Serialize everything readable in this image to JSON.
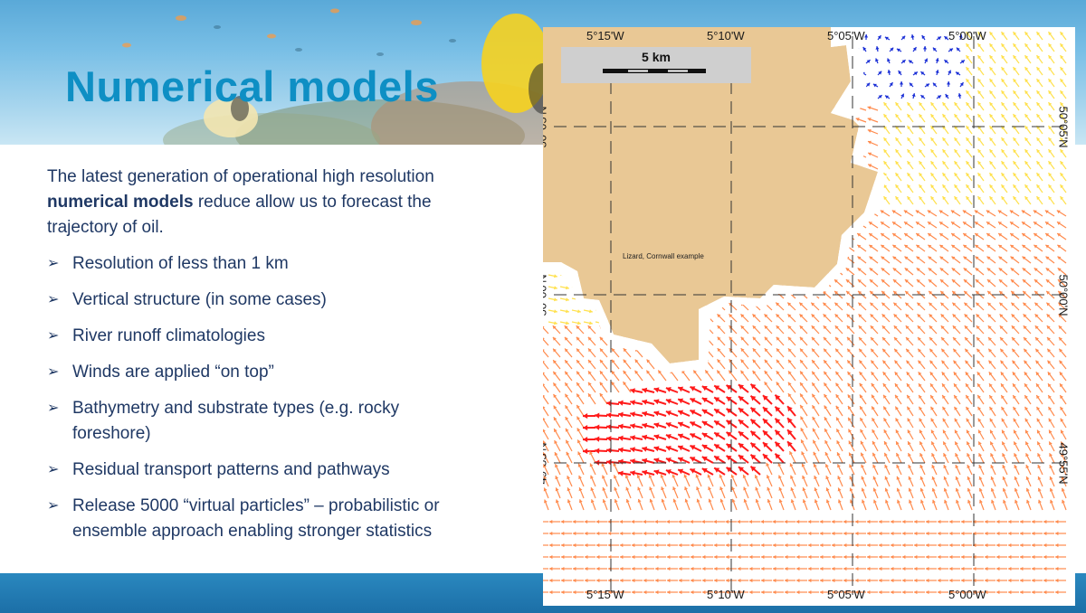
{
  "slide": {
    "title": "Numerical models",
    "intro": {
      "before": "The latest generation of operational high resolution ",
      "emphasis": "numerical models",
      "after": " reduce allow us to forecast the trajectory of oil."
    },
    "bullet_glyph": "➢",
    "bullets": [
      " Resolution of less than 1 km",
      "Vertical structure (in some cases)",
      "River runoff climatologies",
      "Winds are applied “on top”",
      "Bathymetry and substrate types (e.g. rocky foreshore)",
      "Residual transport patterns and pathways",
      "Release 5000 “virtual particles” – probabilistic or ensemble approach enabling stronger statistics"
    ]
  },
  "map": {
    "caption": "Lizard, Cornwall example",
    "scale_label": "5 km",
    "longitude_labels": [
      "5°15'W",
      "5°10'W",
      "5°05'W",
      "5°00'W"
    ],
    "latitude_labels": [
      "50°05'N",
      "50°00'N",
      "49°55'N"
    ],
    "colors": {
      "land": "#e9c895",
      "strong_current": "#ff1a1a",
      "medium_current": "#ff8a4c",
      "weak_current": "#ffe14d",
      "slack_current": "#1a2fd6"
    }
  },
  "theme": {
    "title_color": "#0e8fc4",
    "text_color": "#1f3864",
    "band_color": "#1c6fa7"
  }
}
